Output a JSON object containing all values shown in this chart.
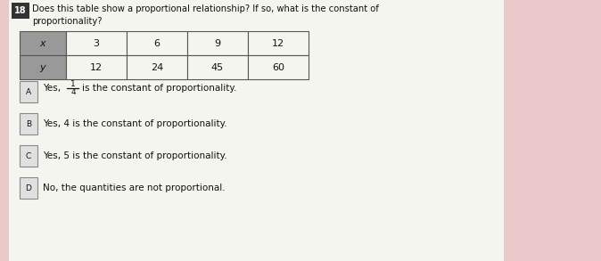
{
  "question_number": "18",
  "question_text_line1": "Does this table show a proportional relationship? If so, what is the constant of",
  "question_text_line2": "proportionality?",
  "table": {
    "row_labels": [
      "x",
      "y"
    ],
    "col_values": [
      [
        "3",
        "12"
      ],
      [
        "6",
        "24"
      ],
      [
        "9",
        "45"
      ],
      [
        "12",
        "60"
      ]
    ]
  },
  "choices": [
    {
      "label": "A",
      "text": "is the constant of proportionality.",
      "fraction": "1/4"
    },
    {
      "label": "B",
      "text": "Yes, 4 is the constant of proportionality.",
      "fraction": null
    },
    {
      "label": "C",
      "text": "Yes, 5 is the constant of proportionality.",
      "fraction": null
    },
    {
      "label": "D",
      "text": "No, the quantities are not proportional.",
      "fraction": null
    }
  ],
  "bg_color": "#e8c8c8",
  "paper_color": "#f5f5f0",
  "header_cell_color": "#999999",
  "table_line_color": "#555555",
  "text_color": "#111111",
  "number_box_color": "#333333",
  "number_box_text": "#ffffff",
  "choice_box_color": "#e0e0e0",
  "choice_box_edge": "#888888"
}
